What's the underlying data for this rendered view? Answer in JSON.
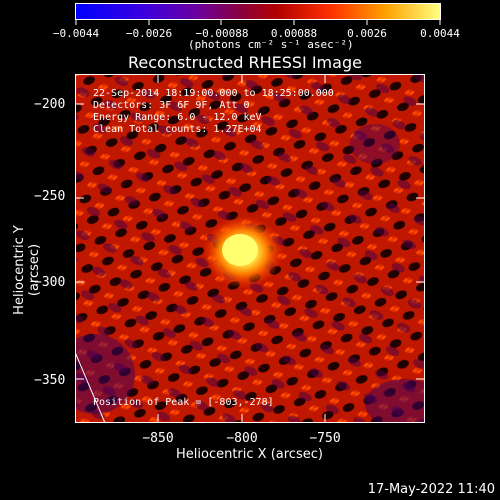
{
  "colorbar": {
    "ticks": [
      "−0.0044",
      "−0.0026",
      "−0.00088",
      "0.00088",
      "0.0026",
      "0.0044"
    ],
    "unit": "(photons cm⁻² s⁻¹ asec⁻²)"
  },
  "title": "Reconstructed RHESSI Image",
  "annotations": {
    "time": "22-Sep-2014 18:19:00.000 to 18:25:00.000",
    "detectors": "Detectors: 3F 6F 9F, Att 0",
    "energy": "Energy Range: 6.0 - 12.0 keV",
    "clean": "Clean     Total counts: 1.27E+04",
    "peak": "Position of Peak = [-803,-278]"
  },
  "axes": {
    "xlabel": "Heliocentric X (arcsec)",
    "ylabel": "Heliocentric Y (arcsec)",
    "xticks": [
      "−850",
      "−800",
      "−750"
    ],
    "yticks": [
      "−200",
      "−250",
      "−300",
      "−350"
    ]
  },
  "footer_date": "17-May-2022 11:40"
}
